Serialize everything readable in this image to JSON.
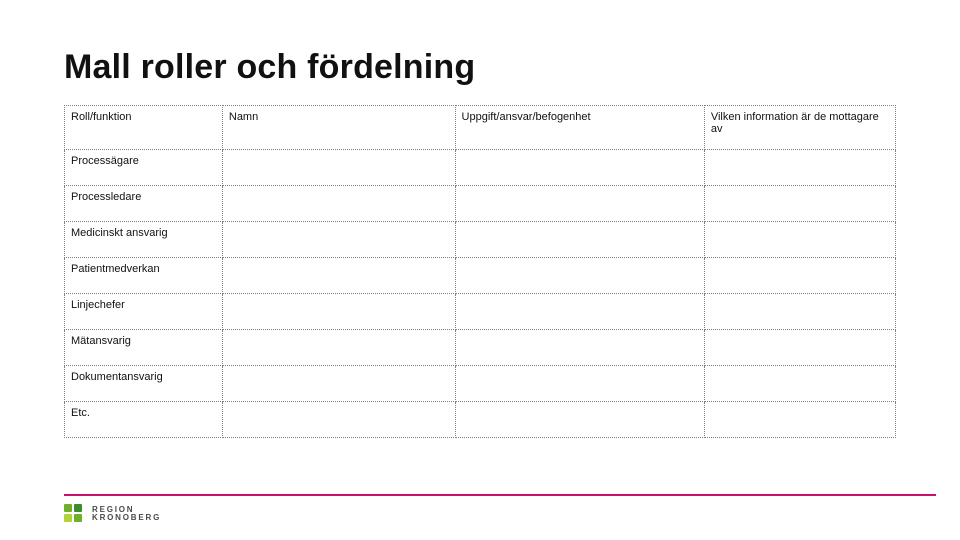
{
  "title": "Mall roller och fördelning",
  "table": {
    "type": "table",
    "border_style": "dotted",
    "border_color": "#808080",
    "font_size_pt": 9,
    "text_color": "#111111",
    "background_color": "#ffffff",
    "column_widths_pct": [
      19,
      28,
      30,
      23
    ],
    "columns": [
      "Roll/funktion",
      "Namn",
      "Uppgift/ansvar/befogenhet",
      "Vilken information är de mottagare av"
    ],
    "rows": [
      [
        "Processägare",
        "",
        "",
        ""
      ],
      [
        "Processledare",
        "",
        "",
        ""
      ],
      [
        "Medicinskt ansvarig",
        "",
        "",
        ""
      ],
      [
        "Patientmedverkan",
        "",
        "",
        ""
      ],
      [
        "Linjechefer",
        "",
        "",
        ""
      ],
      [
        "Mätansvarig",
        "",
        "",
        ""
      ],
      [
        "Dokumentansvarig",
        "",
        "",
        ""
      ],
      [
        "Etc.",
        "",
        "",
        ""
      ]
    ]
  },
  "footer": {
    "rule_color": "#c9106b",
    "logo": {
      "line1": "REGION",
      "line2": "KRONOBERG",
      "mark_colors": [
        "#6faf2a",
        "#3d8b2f",
        "#b3d236",
        "#6faf2a"
      ]
    }
  }
}
